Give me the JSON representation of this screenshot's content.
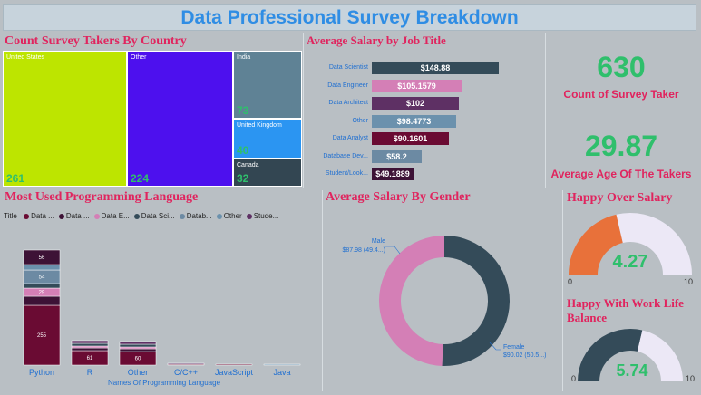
{
  "title": "Data Professional Survey Breakdown",
  "country": {
    "title": "Count Survey Takers By Country",
    "items": [
      {
        "label": "United States",
        "value": 261,
        "color": "#bde500"
      },
      {
        "label": "Other",
        "value": 224,
        "color": "#4d10ee"
      },
      {
        "label": "India",
        "value": 73,
        "color": "#5f8295"
      },
      {
        "label": "United Kingdom",
        "value": 40,
        "color": "#2b95f2"
      },
      {
        "label": "Canada",
        "value": 32,
        "color": "#334652"
      }
    ]
  },
  "job_salary": {
    "title": "Average Salary by Job Title",
    "items": [
      {
        "label": "Data Scientist",
        "value": "$148.88",
        "num": 148.88,
        "color": "#344b59"
      },
      {
        "label": "Data Engineer",
        "value": "$105.1579",
        "num": 105.1579,
        "color": "#d47fb6"
      },
      {
        "label": "Data Architect",
        "value": "$102",
        "num": 102,
        "color": "#5e3064"
      },
      {
        "label": "Other",
        "value": "$98.4773",
        "num": 98.4773,
        "color": "#6b91ad"
      },
      {
        "label": "Data Analyst",
        "value": "$90.1601",
        "num": 90.1601,
        "color": "#6a0b33"
      },
      {
        "label": "Database Dev...",
        "value": "$58.2",
        "num": 58.2,
        "color": "#6c8aa3"
      },
      {
        "label": "Student/Look...",
        "value": "$49.1889",
        "num": 49.1889,
        "color": "#3d1236"
      }
    ]
  },
  "kpi": {
    "count_value": "630",
    "count_label": "Count of  Survey Taker",
    "age_value": "29.87",
    "age_label": "Average Age Of The Takers"
  },
  "languages": {
    "title": "Most Used Programming Language",
    "legend_title": "Title",
    "legend": [
      {
        "label": "Data ...",
        "color": "#6a0b33"
      },
      {
        "label": "Data ...",
        "color": "#3d1236"
      },
      {
        "label": "Data E...",
        "color": "#d47fb6"
      },
      {
        "label": "Data Sci...",
        "color": "#344b59"
      },
      {
        "label": "Datab...",
        "color": "#6c8aa3"
      },
      {
        "label": "Other",
        "color": "#6b91ad"
      },
      {
        "label": "Stude...",
        "color": "#5e3064"
      }
    ],
    "x_title": "Names Of Programming Language",
    "chart_data": {
      "type": "bar",
      "categories": [
        "Python",
        "R",
        "Other",
        "C/C++",
        "JavaScript",
        "Java"
      ],
      "segment_labels": {
        "Python": [
          "255",
          "29",
          "54",
          "56"
        ],
        "R": [
          "61"
        ],
        "Other": [
          "60"
        ]
      }
    }
  },
  "gender": {
    "title": "Average Salary By Gender",
    "male_label": "Male",
    "male_value": "$87.98 (49.4...)",
    "female_label": "Female",
    "female_value": "$90.02 (50.5...)",
    "chart_data": {
      "type": "pie",
      "slices": [
        {
          "name": "Male",
          "value": 49.4,
          "color": "#d47fb6"
        },
        {
          "name": "Female",
          "value": 50.5,
          "color": "#344b59"
        }
      ]
    }
  },
  "happy_salary": {
    "title": "Happy Over Salary",
    "value": "4.27",
    "num": 4.27,
    "min": "0",
    "max": "10",
    "color": "#e8713a"
  },
  "happy_wlb": {
    "title": "Happy With Work Life Balance",
    "value": "5.74",
    "num": 5.74,
    "min": "0",
    "max": "10",
    "color": "#344b59"
  }
}
